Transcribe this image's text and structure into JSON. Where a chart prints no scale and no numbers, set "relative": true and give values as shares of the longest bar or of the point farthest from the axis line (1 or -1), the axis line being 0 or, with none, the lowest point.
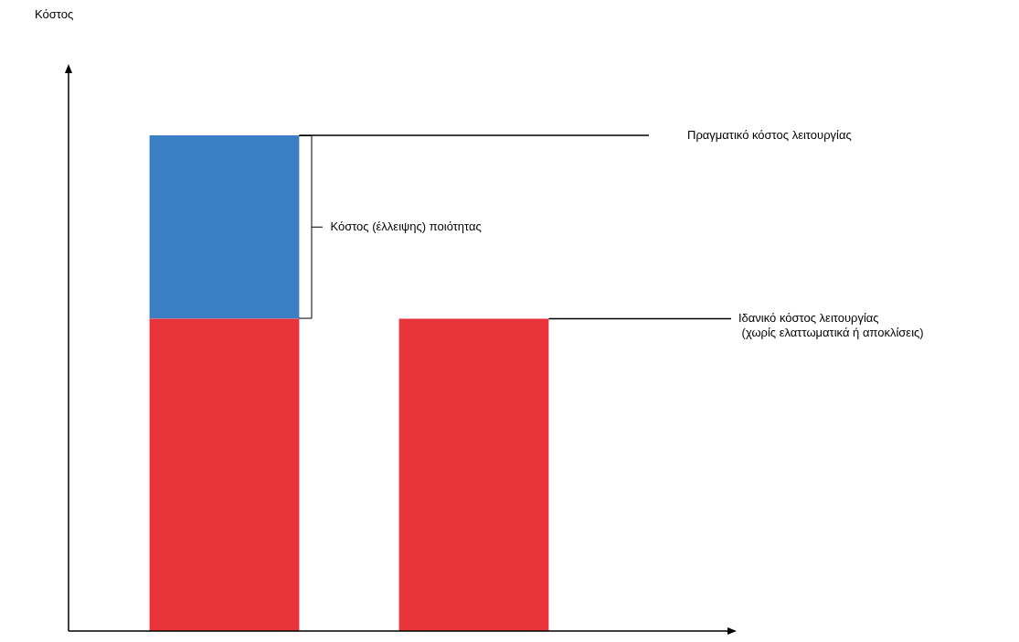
{
  "chart_data": {
    "type": "bar",
    "relative": true,
    "stacked": true,
    "categories": [
      null,
      null
    ],
    "series": [
      {
        "color": "#e8343a",
        "values": [
          0.63,
          0.63
        ]
      },
      {
        "color": "#3a7fc4",
        "values": [
          0.37,
          null
        ]
      }
    ],
    "annotations": [
      "Πραγματικό κόστος λειτουργίας",
      "Κόστος (έλλειψης) ποιότητας",
      "Ιδανικό κόστος λειτουργίας\n (χωρίς ελαττωματικά ή αποκλίσεις)",
      "Κόστος"
    ]
  }
}
